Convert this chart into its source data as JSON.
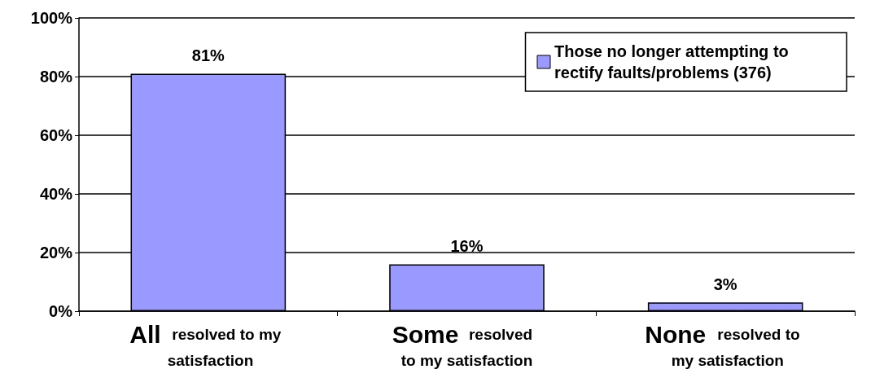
{
  "chart_data": {
    "type": "bar",
    "categories": [
      "All resolved to my satisfaction",
      "Some resolved to my satisfaction",
      "None resolved to my satisfaction"
    ],
    "series": [
      {
        "name": "Those no longer attempting to rectify faults/problems (376)",
        "color": "#9999ff",
        "values": [
          81,
          16,
          3
        ],
        "value_labels": [
          "81%",
          "16%",
          "3%"
        ]
      }
    ],
    "ylim": [
      0,
      100
    ],
    "yticks": [
      {
        "value": 0,
        "label": "0%"
      },
      {
        "value": 20,
        "label": "20%"
      },
      {
        "value": 40,
        "label": "40%"
      },
      {
        "value": 60,
        "label": "60%"
      },
      {
        "value": 80,
        "label": "80%"
      },
      {
        "value": 100,
        "label": "100%"
      }
    ],
    "grid": "y",
    "legend": "top right"
  }
}
